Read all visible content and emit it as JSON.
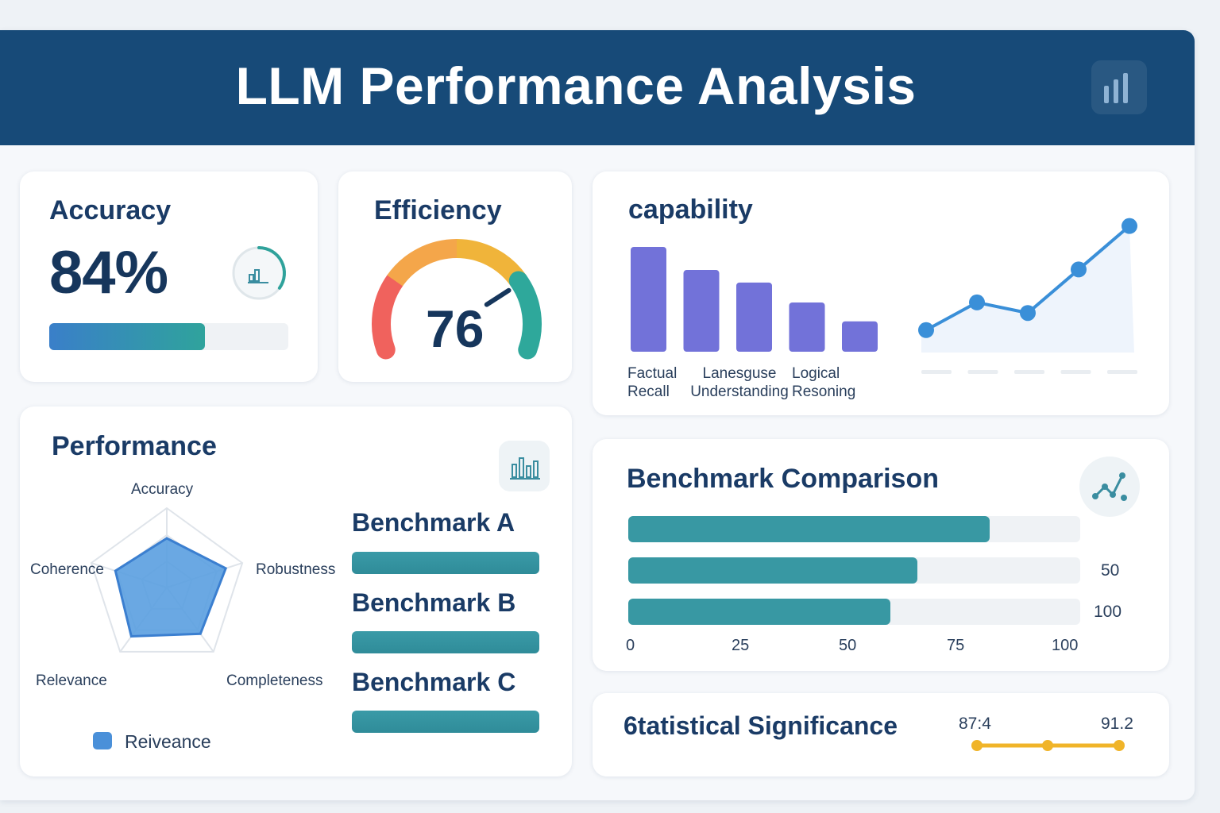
{
  "header": {
    "title": "LLM Performance Analysis",
    "icon": "bar-chart-icon"
  },
  "accuracy": {
    "title": "Accuracy",
    "value": "84%",
    "progress": 0.65,
    "icon": "mini-bar-chart-icon",
    "ring_progress": 0.35
  },
  "efficiency": {
    "title": "Efficiency",
    "value": "76",
    "gauge_level": 0.76,
    "colors": [
      "#f0625d",
      "#f4a64a",
      "#f0b43a",
      "#2ea89b"
    ]
  },
  "capability": {
    "title": "capability",
    "bar_color": "#7272d9",
    "bar_values": [
      1.0,
      0.78,
      0.66,
      0.47,
      0.29
    ],
    "categories": [
      [
        "Factual",
        "Recall"
      ],
      [
        "Lanesguse",
        "Understanding"
      ],
      [
        "Logical",
        "Reѕoning"
      ]
    ],
    "line_values": [
      0.17,
      0.38,
      0.3,
      0.63,
      0.96
    ],
    "line_color": "#3a8fd8"
  },
  "performance": {
    "title": "Performance",
    "icon": "bar-chart-icon",
    "axes": [
      "Accuracy",
      "Robustness",
      "Completeness",
      "Relevance",
      "Coherence"
    ],
    "radar_values": [
      0.62,
      0.78,
      0.72,
      0.76,
      0.68
    ],
    "legend": "Reiveance",
    "color": "#4a90d9"
  },
  "benchmarks": [
    {
      "label": "Benchmark A"
    },
    {
      "label": "Benchmark B"
    },
    {
      "label": "Benchmark C"
    }
  ],
  "comparison": {
    "title": "Benchmark Comparison",
    "icon": "scatter-trend-icon",
    "bars": [
      {
        "value": 80
      },
      {
        "value": 64
      },
      {
        "value": 58
      }
    ],
    "right_labels": [
      "50",
      "100"
    ],
    "ticks": [
      "0",
      "25",
      "50",
      "75",
      "100"
    ],
    "color": "#3898a3"
  },
  "significance": {
    "title": "6tatistical Significance",
    "low": "87:4",
    "high": "91.2",
    "color": "#f0b429"
  }
}
